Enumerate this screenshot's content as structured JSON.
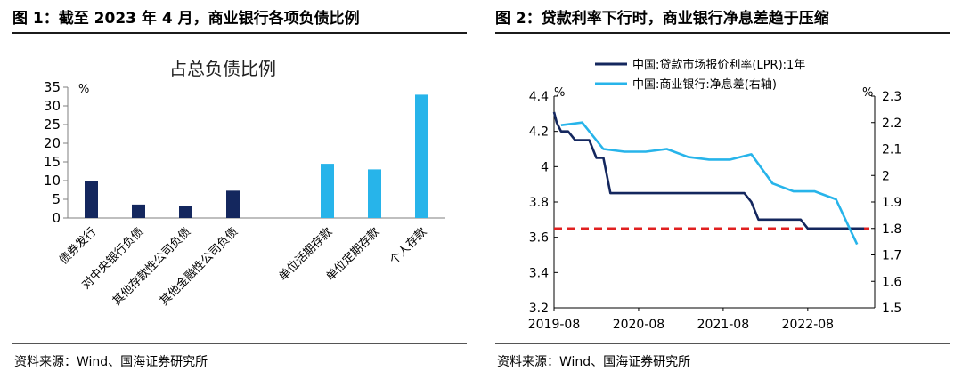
{
  "figure1": {
    "title": "图 1：截至 2023 年 4 月，商业银行各项负债比例",
    "source": "资料来源：Wind、国海证券研究所",
    "chart_data": {
      "type": "bar",
      "title": "占总负债比例",
      "ylabel": "%",
      "ylim": [
        0,
        35
      ],
      "yticks": [
        0,
        5,
        10,
        15,
        20,
        25,
        30,
        35
      ],
      "grid": false,
      "categories": [
        "债券发行",
        "对中央银行负债",
        "其他存款性公司负债",
        "其他金融性公司负债",
        "单位活期存款",
        "单位定期存款",
        "个人存款"
      ],
      "values": [
        9.9,
        3.6,
        3.3,
        7.3,
        14.5,
        13.0,
        33.0
      ],
      "colors": [
        "#14275e",
        "#14275e",
        "#14275e",
        "#14275e",
        "#27b4ea",
        "#27b4ea",
        "#27b4ea"
      ]
    }
  },
  "figure2": {
    "title": "图 2：贷款利率下行时，商业银行净息差趋于压缩",
    "source": "资料来源：Wind、国海证券研究所",
    "chart_data": {
      "type": "line",
      "xlabel": "",
      "x_ticks": [
        "2019-08",
        "2020-08",
        "2021-08",
        "2022-08"
      ],
      "y_left": {
        "label": "%",
        "ylim": [
          3.2,
          4.4
        ],
        "ticks": [
          3.2,
          3.4,
          3.6,
          3.8,
          4.0,
          4.2,
          4.4
        ]
      },
      "y_right": {
        "label": "%",
        "ylim": [
          1.5,
          2.3
        ],
        "ticks": [
          1.5,
          1.6,
          1.7,
          1.8,
          1.9,
          2.0,
          2.1,
          2.2,
          2.3
        ]
      },
      "legend_position": "top-left",
      "reference_line": {
        "axis": "left",
        "value": 3.65,
        "color": "#e02020",
        "style": "dashed"
      },
      "series": [
        {
          "name": "中国:贷款市场报价利率(LPR):1年",
          "axis": "left",
          "color": "#14275e",
          "points": [
            [
              "2019-08",
              4.31
            ],
            [
              "2019-08",
              4.25
            ],
            [
              "2019-09",
              4.2
            ],
            [
              "2019-10",
              4.2
            ],
            [
              "2019-11",
              4.15
            ],
            [
              "2019-12",
              4.15
            ],
            [
              "2020-01",
              4.15
            ],
            [
              "2020-02",
              4.05
            ],
            [
              "2020-03",
              4.05
            ],
            [
              "2020-04",
              3.85
            ],
            [
              "2020-06",
              3.85
            ],
            [
              "2020-09",
              3.85
            ],
            [
              "2020-12",
              3.85
            ],
            [
              "2021-03",
              3.85
            ],
            [
              "2021-06",
              3.85
            ],
            [
              "2021-09",
              3.85
            ],
            [
              "2021-11",
              3.85
            ],
            [
              "2021-12",
              3.8
            ],
            [
              "2022-01",
              3.7
            ],
            [
              "2022-04",
              3.7
            ],
            [
              "2022-07",
              3.7
            ],
            [
              "2022-08",
              3.65
            ],
            [
              "2022-10",
              3.65
            ],
            [
              "2023-01",
              3.65
            ],
            [
              "2023-04",
              3.65
            ]
          ]
        },
        {
          "name": "中国:商业银行:净息差(右轴)",
          "axis": "right",
          "color": "#27b4ea",
          "points": [
            [
              "2019-09",
              2.19
            ],
            [
              "2019-12",
              2.2
            ],
            [
              "2020-03",
              2.1
            ],
            [
              "2020-06",
              2.09
            ],
            [
              "2020-09",
              2.09
            ],
            [
              "2020-12",
              2.1
            ],
            [
              "2021-03",
              2.07
            ],
            [
              "2021-06",
              2.06
            ],
            [
              "2021-09",
              2.06
            ],
            [
              "2021-12",
              2.08
            ],
            [
              "2022-03",
              1.97
            ],
            [
              "2022-06",
              1.94
            ],
            [
              "2022-09",
              1.94
            ],
            [
              "2022-12",
              1.91
            ],
            [
              "2023-03",
              1.74
            ]
          ]
        }
      ]
    }
  }
}
